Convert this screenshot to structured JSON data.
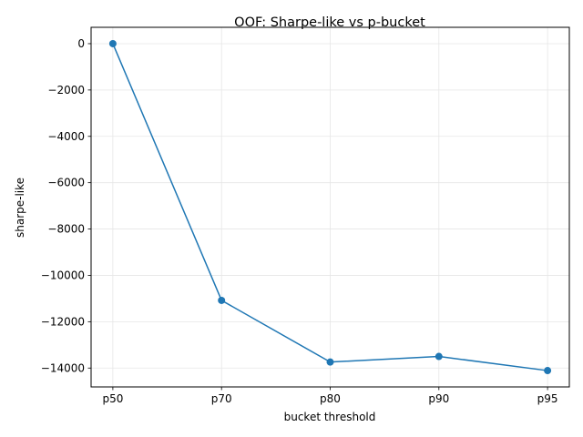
{
  "chart_data": {
    "type": "line",
    "title": "OOF: Sharpe-like vs p-bucket",
    "xlabel": "bucket threshold",
    "ylabel": "sharpe-like",
    "categories": [
      "p50",
      "p70",
      "p80",
      "p90",
      "p95"
    ],
    "series": [
      {
        "values": [
          0,
          -11080,
          -13740,
          -13500,
          -14110
        ]
      }
    ],
    "ylim": [
      -14815,
      706
    ],
    "yticks": [
      0,
      -2000,
      -4000,
      -6000,
      -8000,
      -10000,
      -12000,
      -14000
    ],
    "ytick_labels": [
      "0",
      "−2000",
      "−4000",
      "−6000",
      "−8000",
      "−10000",
      "−12000",
      "−14000"
    ],
    "grid": true,
    "marker": "circle",
    "line_color": "#1f77b4",
    "grid_color": "#e6e6e6"
  }
}
